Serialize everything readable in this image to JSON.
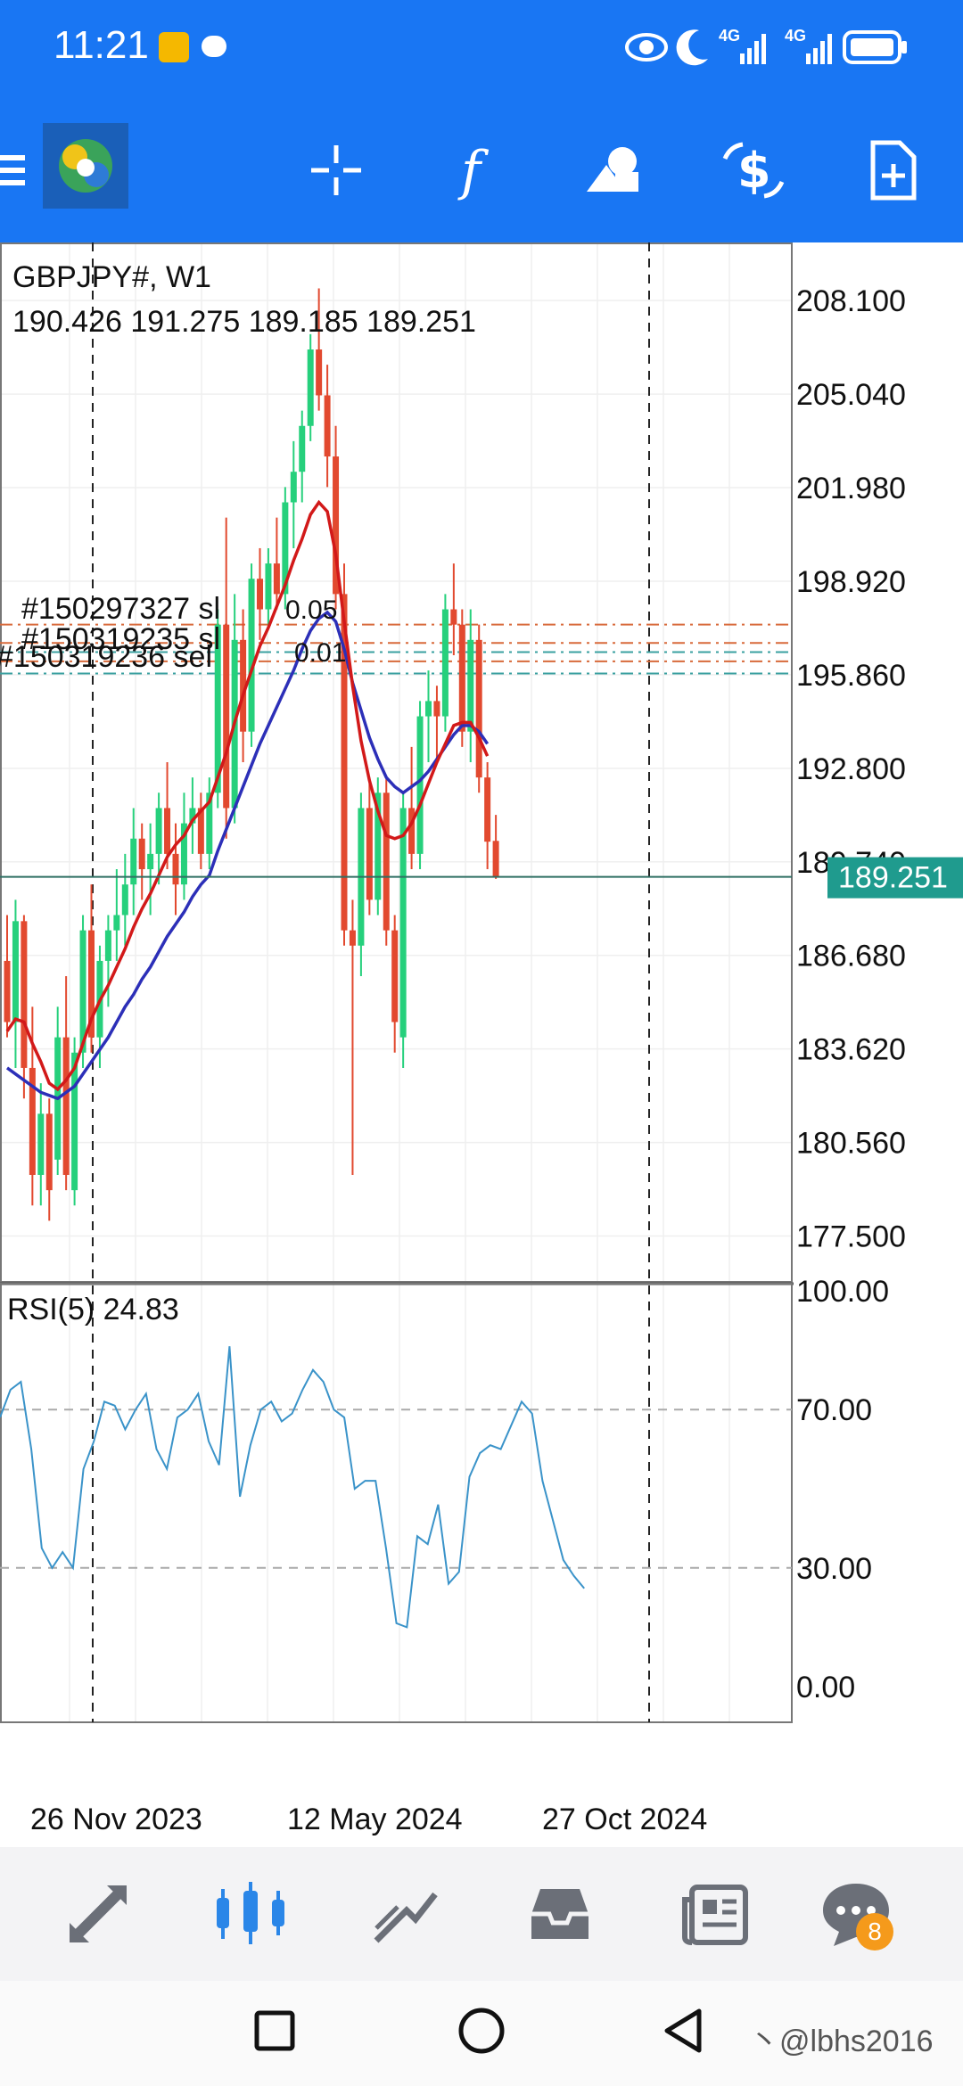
{
  "status_bar": {
    "time": "11:21",
    "net1": "4G",
    "net2": "4G"
  },
  "chart_data": {
    "type": "candlestick",
    "symbol_label": "GBPJPY#, W1",
    "ohlc_label": "190.426 191.275 189.185 189.251",
    "last_price": "189.251",
    "y_ticks": [
      "208.100",
      "205.040",
      "201.980",
      "198.920",
      "195.860",
      "192.800",
      "189.740",
      "186.680",
      "183.620",
      "180.560",
      "177.500"
    ],
    "ylim": [
      176.0,
      210.0
    ],
    "x_labels": [
      "26 Nov 2023",
      "12 May 2024",
      "27 Oct 2024"
    ],
    "order_labels": [
      "#150297327 sl",
      "0.05",
      "#150319235 sl",
      "0.01",
      "#150319236 sel",
      "0.01"
    ],
    "candles": [
      {
        "o": 186.5,
        "h": 188.0,
        "l": 184.0,
        "c": 184.5
      },
      {
        "o": 184.5,
        "h": 188.5,
        "l": 183.0,
        "c": 187.8
      },
      {
        "o": 187.8,
        "h": 188.0,
        "l": 182.0,
        "c": 183.0
      },
      {
        "o": 183.0,
        "h": 185.0,
        "l": 178.5,
        "c": 179.5
      },
      {
        "o": 179.5,
        "h": 182.5,
        "l": 178.5,
        "c": 181.5
      },
      {
        "o": 181.5,
        "h": 182.0,
        "l": 178.0,
        "c": 179.0
      },
      {
        "o": 180.0,
        "h": 185.0,
        "l": 179.5,
        "c": 184.0
      },
      {
        "o": 184.0,
        "h": 186.0,
        "l": 179.0,
        "c": 179.5
      },
      {
        "o": 179.0,
        "h": 184.0,
        "l": 178.5,
        "c": 183.5
      },
      {
        "o": 183.5,
        "h": 188.0,
        "l": 183.0,
        "c": 187.5
      },
      {
        "o": 187.5,
        "h": 189.0,
        "l": 183.5,
        "c": 184.0
      },
      {
        "o": 184.0,
        "h": 187.0,
        "l": 183.0,
        "c": 186.5
      },
      {
        "o": 186.5,
        "h": 188.0,
        "l": 185.0,
        "c": 187.5
      },
      {
        "o": 187.5,
        "h": 189.5,
        "l": 186.5,
        "c": 188.0
      },
      {
        "o": 188.0,
        "h": 190.0,
        "l": 187.0,
        "c": 189.0
      },
      {
        "o": 189.0,
        "h": 191.5,
        "l": 188.0,
        "c": 190.5
      },
      {
        "o": 190.5,
        "h": 191.0,
        "l": 188.5,
        "c": 189.5
      },
      {
        "o": 189.5,
        "h": 191.0,
        "l": 188.0,
        "c": 190.0
      },
      {
        "o": 190.0,
        "h": 192.0,
        "l": 189.0,
        "c": 191.5
      },
      {
        "o": 191.5,
        "h": 193.0,
        "l": 189.5,
        "c": 190.0
      },
      {
        "o": 190.0,
        "h": 191.0,
        "l": 188.0,
        "c": 189.0
      },
      {
        "o": 189.0,
        "h": 192.0,
        "l": 188.5,
        "c": 191.0
      },
      {
        "o": 191.0,
        "h": 192.5,
        "l": 190.0,
        "c": 191.5
      },
      {
        "o": 191.5,
        "h": 192.0,
        "l": 189.5,
        "c": 190.0
      },
      {
        "o": 190.0,
        "h": 192.5,
        "l": 189.5,
        "c": 192.0
      },
      {
        "o": 192.0,
        "h": 198.0,
        "l": 191.5,
        "c": 197.5
      },
      {
        "o": 197.5,
        "h": 201.0,
        "l": 190.5,
        "c": 191.5
      },
      {
        "o": 191.5,
        "h": 198.5,
        "l": 191.0,
        "c": 197.0
      },
      {
        "o": 197.0,
        "h": 198.0,
        "l": 193.0,
        "c": 194.0
      },
      {
        "o": 194.0,
        "h": 199.5,
        "l": 193.5,
        "c": 199.0
      },
      {
        "o": 199.0,
        "h": 200.0,
        "l": 197.0,
        "c": 198.0
      },
      {
        "o": 198.0,
        "h": 200.0,
        "l": 197.5,
        "c": 199.5
      },
      {
        "o": 199.5,
        "h": 201.0,
        "l": 198.0,
        "c": 198.5
      },
      {
        "o": 198.5,
        "h": 202.0,
        "l": 198.0,
        "c": 201.5
      },
      {
        "o": 201.5,
        "h": 203.5,
        "l": 200.0,
        "c": 202.5
      },
      {
        "o": 202.5,
        "h": 204.5,
        "l": 201.5,
        "c": 204.0
      },
      {
        "o": 204.0,
        "h": 207.0,
        "l": 203.5,
        "c": 206.5
      },
      {
        "o": 206.5,
        "h": 208.5,
        "l": 204.5,
        "c": 205.0
      },
      {
        "o": 205.0,
        "h": 206.0,
        "l": 202.0,
        "c": 203.0
      },
      {
        "o": 203.0,
        "h": 204.0,
        "l": 198.0,
        "c": 198.5
      },
      {
        "o": 198.5,
        "h": 199.5,
        "l": 187.0,
        "c": 187.5
      },
      {
        "o": 187.5,
        "h": 188.5,
        "l": 179.5,
        "c": 187.0
      },
      {
        "o": 187.0,
        "h": 192.0,
        "l": 186.0,
        "c": 191.5
      },
      {
        "o": 191.5,
        "h": 192.5,
        "l": 188.0,
        "c": 188.5
      },
      {
        "o": 188.5,
        "h": 192.5,
        "l": 188.0,
        "c": 192.0
      },
      {
        "o": 192.0,
        "h": 192.5,
        "l": 187.0,
        "c": 187.5
      },
      {
        "o": 187.5,
        "h": 188.0,
        "l": 183.5,
        "c": 184.5
      },
      {
        "o": 184.0,
        "h": 192.0,
        "l": 183.0,
        "c": 191.5
      },
      {
        "o": 191.5,
        "h": 193.5,
        "l": 189.5,
        "c": 190.0
      },
      {
        "o": 190.0,
        "h": 195.0,
        "l": 189.5,
        "c": 194.5
      },
      {
        "o": 194.5,
        "h": 196.0,
        "l": 193.0,
        "c": 195.0
      },
      {
        "o": 195.0,
        "h": 195.5,
        "l": 193.0,
        "c": 194.5
      },
      {
        "o": 194.5,
        "h": 198.5,
        "l": 194.0,
        "c": 198.0
      },
      {
        "o": 198.0,
        "h": 199.5,
        "l": 196.5,
        "c": 197.5
      },
      {
        "o": 197.5,
        "h": 198.0,
        "l": 193.5,
        "c": 194.0
      },
      {
        "o": 194.0,
        "h": 198.0,
        "l": 193.0,
        "c": 197.0
      },
      {
        "o": 197.0,
        "h": 197.5,
        "l": 192.0,
        "c": 192.5
      },
      {
        "o": 192.5,
        "h": 193.0,
        "l": 189.5,
        "c": 190.4
      },
      {
        "o": 190.426,
        "h": 191.275,
        "l": 189.185,
        "c": 189.251
      }
    ],
    "ma_red": [
      184.2,
      184.6,
      184.5,
      183.8,
      183.2,
      182.5,
      182.3,
      182.6,
      183.0,
      183.8,
      184.6,
      185.2,
      185.7,
      186.3,
      186.9,
      187.6,
      188.2,
      188.7,
      189.3,
      189.9,
      190.3,
      190.6,
      191.1,
      191.4,
      191.7,
      192.5,
      193.3,
      194.3,
      195.2,
      196.0,
      196.8,
      197.4,
      198.1,
      198.8,
      199.6,
      200.3,
      201.1,
      201.5,
      201.2,
      199.8,
      197.6,
      195.5,
      193.7,
      192.4,
      191.4,
      190.6,
      190.5,
      190.6,
      191.0,
      191.6,
      192.3,
      193.0,
      193.6,
      194.2,
      194.3,
      194.3,
      193.8,
      193.2
    ],
    "ma_blue": [
      183.0,
      182.8,
      182.6,
      182.4,
      182.2,
      182.1,
      182.0,
      182.2,
      182.4,
      182.8,
      183.2,
      183.6,
      184.0,
      184.5,
      185.0,
      185.4,
      185.9,
      186.3,
      186.8,
      187.3,
      187.7,
      188.1,
      188.6,
      189.0,
      189.3,
      190.1,
      190.8,
      191.5,
      192.2,
      192.9,
      193.6,
      194.2,
      194.8,
      195.4,
      196.0,
      196.7,
      197.3,
      197.7,
      197.9,
      197.6,
      196.7,
      195.6,
      194.7,
      193.8,
      193.1,
      192.5,
      192.2,
      192.0,
      192.2,
      192.4,
      192.7,
      193.1,
      193.5,
      193.9,
      194.2,
      194.2,
      194.0,
      193.6
    ],
    "rsi_label": "RSI(5) 24.83",
    "rsi_ticks": [
      "100.00",
      "70.00",
      "30.00",
      "0.00"
    ],
    "rsi_levels": [
      70,
      30
    ],
    "rsi_values": [
      68,
      75,
      77,
      60,
      35,
      30,
      34,
      30,
      55,
      62,
      72,
      71,
      65,
      70,
      74,
      60,
      55,
      68,
      70,
      74,
      62,
      56,
      86,
      48,
      61,
      70,
      72,
      67,
      69,
      75,
      80,
      77,
      70,
      68,
      50,
      52,
      52,
      35,
      16,
      15,
      38,
      36,
      46,
      26,
      29,
      53,
      59,
      61,
      60,
      66,
      72,
      69,
      52,
      42,
      32,
      28,
      24.83
    ],
    "colors": {
      "bull": "#26d07c",
      "bear": "#e2492f",
      "ma_red": "#d21919",
      "ma_blue": "#2c2fb8",
      "rsi": "#3a93c9",
      "price_tag": "#1f9b8e"
    }
  },
  "bottom_nav": {
    "chat_badge": "8"
  },
  "watermark": "丶@lbhs2016"
}
